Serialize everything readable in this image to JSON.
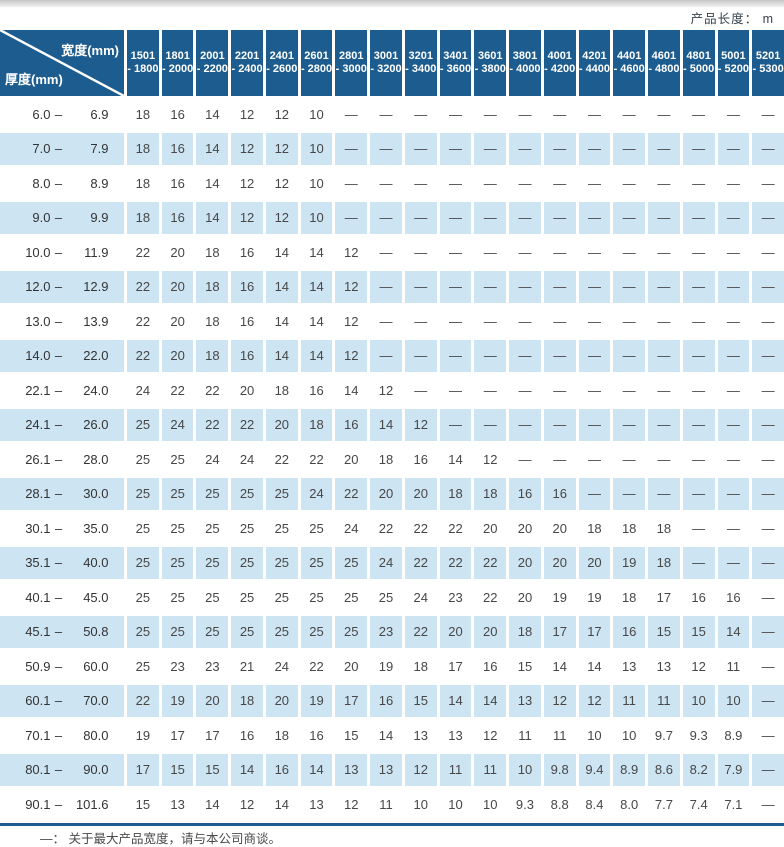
{
  "page": {
    "product_length_label": "产品长度： m",
    "footnote": "—： 关于最大产品宽度，请与本公司商谈。"
  },
  "colors": {
    "header_blue": "#1d5c8e",
    "row_light_blue": "#cde4f2",
    "row_white": "#ffffff",
    "table_border_blue": "#1d5c8e"
  },
  "table": {
    "corner_top_right": "宽度(mm)",
    "corner_bottom_left": "厚度(mm)",
    "width_columns": [
      {
        "line1": "1501",
        "line2": "- 1800"
      },
      {
        "line1": "1801",
        "line2": "- 2000"
      },
      {
        "line1": "2001",
        "line2": "- 2200"
      },
      {
        "line1": "2201",
        "line2": "- 2400"
      },
      {
        "line1": "2401",
        "line2": "- 2600"
      },
      {
        "line1": "2601",
        "line2": "- 2800"
      },
      {
        "line1": "2801",
        "line2": "- 3000"
      },
      {
        "line1": "3001",
        "line2": "- 3200"
      },
      {
        "line1": "3201",
        "line2": "- 3400"
      },
      {
        "line1": "3401",
        "line2": "- 3600"
      },
      {
        "line1": "3601",
        "line2": "- 3800"
      },
      {
        "line1": "3801",
        "line2": "- 4000"
      },
      {
        "line1": "4001",
        "line2": "- 4200"
      },
      {
        "line1": "4201",
        "line2": "- 4400"
      },
      {
        "line1": "4401",
        "line2": "- 4600"
      },
      {
        "line1": "4601",
        "line2": "- 4800"
      },
      {
        "line1": "4801",
        "line2": "- 5000"
      },
      {
        "line1": "5001",
        "line2": "- 5200"
      },
      {
        "line1": "5201",
        "line2": "- 5300"
      }
    ],
    "rows": [
      {
        "lo": "6.0",
        "hi": "6.9",
        "values": [
          "18",
          "16",
          "14",
          "12",
          "12",
          "10",
          "—",
          "—",
          "—",
          "—",
          "—",
          "—",
          "—",
          "—",
          "—",
          "—",
          "—",
          "—",
          "—"
        ]
      },
      {
        "lo": "7.0",
        "hi": "7.9",
        "values": [
          "18",
          "16",
          "14",
          "12",
          "12",
          "10",
          "—",
          "—",
          "—",
          "—",
          "—",
          "—",
          "—",
          "—",
          "—",
          "—",
          "—",
          "—",
          "—"
        ]
      },
      {
        "lo": "8.0",
        "hi": "8.9",
        "values": [
          "18",
          "16",
          "14",
          "12",
          "12",
          "10",
          "—",
          "—",
          "—",
          "—",
          "—",
          "—",
          "—",
          "—",
          "—",
          "—",
          "—",
          "—",
          "—"
        ]
      },
      {
        "lo": "9.0",
        "hi": "9.9",
        "values": [
          "18",
          "16",
          "14",
          "12",
          "12",
          "10",
          "—",
          "—",
          "—",
          "—",
          "—",
          "—",
          "—",
          "—",
          "—",
          "—",
          "—",
          "—",
          "—"
        ]
      },
      {
        "lo": "10.0",
        "hi": "11.9",
        "values": [
          "22",
          "20",
          "18",
          "16",
          "14",
          "14",
          "12",
          "—",
          "—",
          "—",
          "—",
          "—",
          "—",
          "—",
          "—",
          "—",
          "—",
          "—",
          "—"
        ]
      },
      {
        "lo": "12.0",
        "hi": "12.9",
        "values": [
          "22",
          "20",
          "18",
          "16",
          "14",
          "14",
          "12",
          "—",
          "—",
          "—",
          "—",
          "—",
          "—",
          "—",
          "—",
          "—",
          "—",
          "—",
          "—"
        ]
      },
      {
        "lo": "13.0",
        "hi": "13.9",
        "values": [
          "22",
          "20",
          "18",
          "16",
          "14",
          "14",
          "12",
          "—",
          "—",
          "—",
          "—",
          "—",
          "—",
          "—",
          "—",
          "—",
          "—",
          "—",
          "—"
        ]
      },
      {
        "lo": "14.0",
        "hi": "22.0",
        "values": [
          "22",
          "20",
          "18",
          "16",
          "14",
          "14",
          "12",
          "—",
          "—",
          "—",
          "—",
          "—",
          "—",
          "—",
          "—",
          "—",
          "—",
          "—",
          "—"
        ]
      },
      {
        "lo": "22.1",
        "hi": "24.0",
        "values": [
          "24",
          "22",
          "22",
          "20",
          "18",
          "16",
          "14",
          "12",
          "—",
          "—",
          "—",
          "—",
          "—",
          "—",
          "—",
          "—",
          "—",
          "—",
          "—"
        ]
      },
      {
        "lo": "24.1",
        "hi": "26.0",
        "values": [
          "25",
          "24",
          "22",
          "22",
          "20",
          "18",
          "16",
          "14",
          "12",
          "—",
          "—",
          "—",
          "—",
          "—",
          "—",
          "—",
          "—",
          "—",
          "—"
        ]
      },
      {
        "lo": "26.1",
        "hi": "28.0",
        "values": [
          "25",
          "25",
          "24",
          "24",
          "22",
          "22",
          "20",
          "18",
          "16",
          "14",
          "12",
          "—",
          "—",
          "—",
          "—",
          "—",
          "—",
          "—",
          "—"
        ]
      },
      {
        "lo": "28.1",
        "hi": "30.0",
        "values": [
          "25",
          "25",
          "25",
          "25",
          "25",
          "24",
          "22",
          "20",
          "20",
          "18",
          "18",
          "16",
          "16",
          "—",
          "—",
          "—",
          "—",
          "—",
          "—"
        ]
      },
      {
        "lo": "30.1",
        "hi": "35.0",
        "values": [
          "25",
          "25",
          "25",
          "25",
          "25",
          "25",
          "24",
          "22",
          "22",
          "22",
          "20",
          "20",
          "20",
          "18",
          "18",
          "18",
          "—",
          "—",
          "—"
        ]
      },
      {
        "lo": "35.1",
        "hi": "40.0",
        "values": [
          "25",
          "25",
          "25",
          "25",
          "25",
          "25",
          "25",
          "24",
          "22",
          "22",
          "22",
          "20",
          "20",
          "20",
          "19",
          "18",
          "—",
          "—",
          "—"
        ]
      },
      {
        "lo": "40.1",
        "hi": "45.0",
        "values": [
          "25",
          "25",
          "25",
          "25",
          "25",
          "25",
          "25",
          "25",
          "24",
          "23",
          "22",
          "20",
          "19",
          "19",
          "18",
          "17",
          "16",
          "16",
          "—"
        ]
      },
      {
        "lo": "45.1",
        "hi": "50.8",
        "values": [
          "25",
          "25",
          "25",
          "25",
          "25",
          "25",
          "25",
          "23",
          "22",
          "20",
          "20",
          "18",
          "17",
          "17",
          "16",
          "15",
          "15",
          "14",
          "—"
        ]
      },
      {
        "lo": "50.9",
        "hi": "60.0",
        "values": [
          "25",
          "23",
          "23",
          "21",
          "24",
          "22",
          "20",
          "19",
          "18",
          "17",
          "16",
          "15",
          "14",
          "14",
          "13",
          "13",
          "12",
          "11",
          "—"
        ]
      },
      {
        "lo": "60.1",
        "hi": "70.0",
        "values": [
          "22",
          "19",
          "20",
          "18",
          "20",
          "19",
          "17",
          "16",
          "15",
          "14",
          "14",
          "13",
          "12",
          "12",
          "11",
          "11",
          "10",
          "10",
          "—"
        ]
      },
      {
        "lo": "70.1",
        "hi": "80.0",
        "values": [
          "19",
          "17",
          "17",
          "16",
          "18",
          "16",
          "15",
          "14",
          "13",
          "13",
          "12",
          "11",
          "11",
          "10",
          "10",
          "9.7",
          "9.3",
          "8.9",
          "—"
        ]
      },
      {
        "lo": "80.1",
        "hi": "90.0",
        "values": [
          "17",
          "15",
          "15",
          "14",
          "16",
          "14",
          "13",
          "13",
          "12",
          "11",
          "11",
          "10",
          "9.8",
          "9.4",
          "8.9",
          "8.6",
          "8.2",
          "7.9",
          "—"
        ]
      },
      {
        "lo": "90.1",
        "hi": "101.6",
        "values": [
          "15",
          "13",
          "14",
          "12",
          "14",
          "13",
          "12",
          "11",
          "10",
          "10",
          "10",
          "9.3",
          "8.8",
          "8.4",
          "8.0",
          "7.7",
          "7.4",
          "7.1",
          "—"
        ]
      }
    ]
  }
}
